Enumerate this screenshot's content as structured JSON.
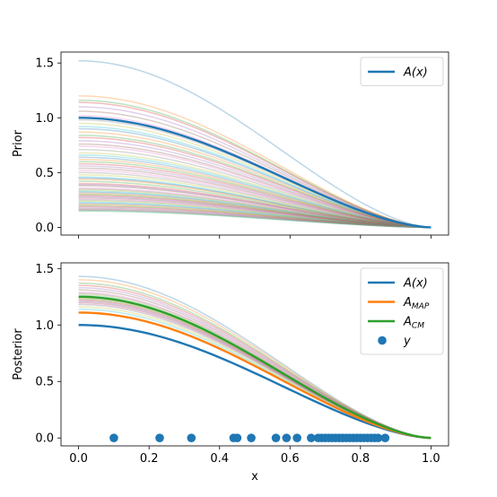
{
  "chart_data": [
    {
      "type": "line",
      "ylabel": "Prior",
      "xlim": [
        -0.05,
        1.05
      ],
      "ylim": [
        -0.07,
        1.6
      ],
      "x_ticks": [
        "0.0",
        "0.2",
        "0.4",
        "0.6",
        "0.8",
        "1.0"
      ],
      "y_ticks": [
        {
          "v": 0.0,
          "label": "0.0"
        },
        {
          "v": 0.5,
          "label": "0.5"
        },
        {
          "v": 1.0,
          "label": "1.0"
        },
        {
          "v": 1.5,
          "label": "1.5"
        }
      ],
      "legend": {
        "position": "upper right",
        "entries": [
          {
            "label": "A(x)",
            "color": "#1f77b4"
          }
        ]
      },
      "series": [
        {
          "name": "A(x)",
          "color": "#1f77b4",
          "amplitude": 1.0
        }
      ],
      "samples": {
        "count": 60,
        "opacity": 0.3,
        "amplitudes": [
          1.52,
          1.2,
          1.16,
          1.14,
          1.1,
          1.06,
          1.02,
          0.98,
          0.95,
          0.92,
          0.9,
          0.87,
          0.84,
          0.82,
          0.79,
          0.76,
          0.74,
          0.71,
          0.68,
          0.66,
          0.64,
          0.62,
          0.6,
          0.58,
          0.56,
          0.54,
          0.52,
          0.5,
          0.48,
          0.46,
          0.45,
          0.44,
          0.42,
          0.4,
          0.39,
          0.38,
          0.36,
          0.35,
          0.34,
          0.33,
          0.32,
          0.31,
          0.3,
          0.29,
          0.28,
          0.27,
          0.26,
          0.25,
          0.24,
          0.23,
          0.22,
          0.21,
          0.2,
          0.19,
          0.18,
          0.17,
          0.16,
          0.16,
          0.15,
          0.15
        ],
        "palette": [
          "#1f77b4",
          "#ff7f0e",
          "#2ca02c",
          "#d62728",
          "#9467bd",
          "#8c564b",
          "#e377c2",
          "#7f7f7f",
          "#bcbd22",
          "#17becf"
        ]
      }
    },
    {
      "type": "line",
      "ylabel": "Posterior",
      "xlabel": "x",
      "xlim": [
        -0.05,
        1.05
      ],
      "ylim": [
        -0.07,
        1.55
      ],
      "x_ticks": [
        "0.0",
        "0.2",
        "0.4",
        "0.6",
        "0.8",
        "1.0"
      ],
      "y_ticks": [
        {
          "v": 0.0,
          "label": "0.0"
        },
        {
          "v": 0.5,
          "label": "0.5"
        },
        {
          "v": 1.0,
          "label": "1.0"
        },
        {
          "v": 1.5,
          "label": "1.5"
        }
      ],
      "legend": {
        "position": "upper right",
        "entries": [
          {
            "label": "A(x)",
            "color": "#1f77b4",
            "kind": "line"
          },
          {
            "label": "A",
            "sub": "MAP",
            "color": "#ff7f0e",
            "kind": "line"
          },
          {
            "label": "A",
            "sub": "CM",
            "color": "#2ca02c",
            "kind": "line"
          },
          {
            "label": "y",
            "color": "#1f77b4",
            "kind": "marker"
          }
        ]
      },
      "series": [
        {
          "name": "A(x)",
          "color": "#1f77b4",
          "amplitude": 1.0
        },
        {
          "name": "A_MAP",
          "color": "#ff7f0e",
          "amplitude": 1.11
        },
        {
          "name": "A_CM",
          "color": "#2ca02c",
          "amplitude": 1.25
        }
      ],
      "samples": {
        "count": 20,
        "opacity": 0.3,
        "amplitudes": [
          1.43,
          1.4,
          1.37,
          1.35,
          1.33,
          1.31,
          1.29,
          1.28,
          1.27,
          1.26,
          1.25,
          1.24,
          1.23,
          1.22,
          1.21,
          1.2,
          1.19,
          1.18,
          1.16,
          1.14
        ],
        "palette": [
          "#1f77b4",
          "#ff7f0e",
          "#2ca02c",
          "#d62728",
          "#9467bd",
          "#8c564b",
          "#e377c2",
          "#7f7f7f",
          "#bcbd22",
          "#17becf"
        ]
      },
      "observations": {
        "name": "y",
        "color": "#1f77b4",
        "y": 0.0,
        "x": [
          0.1,
          0.23,
          0.32,
          0.44,
          0.45,
          0.49,
          0.56,
          0.59,
          0.62,
          0.66,
          0.68,
          0.69,
          0.7,
          0.71,
          0.72,
          0.73,
          0.74,
          0.75,
          0.76,
          0.77,
          0.78,
          0.79,
          0.8,
          0.81,
          0.82,
          0.83,
          0.84,
          0.85,
          0.87
        ]
      }
    }
  ]
}
